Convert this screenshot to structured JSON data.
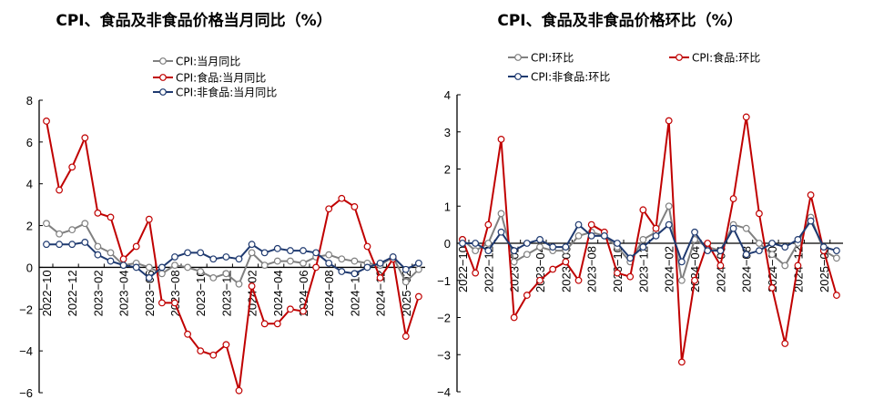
{
  "chart_data": [
    {
      "type": "line",
      "title": "CPI、食品及非食品价格当月同比（%）",
      "xlabel": "",
      "ylabel": "",
      "ylim": [
        -6,
        8
      ],
      "yticks": [
        -6,
        -4,
        -2,
        0,
        2,
        4,
        6,
        8
      ],
      "legend_position": "top-center",
      "x": [
        "2022-10",
        "2022-11",
        "2022-12",
        "2023-01",
        "2023-02",
        "2023-03",
        "2023-04",
        "2023-05",
        "2023-06",
        "2023-07",
        "2023-08",
        "2023-09",
        "2023-10",
        "2023-11",
        "2023-12",
        "2024-01",
        "2024-02",
        "2024-03",
        "2024-04",
        "2024-05",
        "2024-06",
        "2024-07",
        "2024-08",
        "2024-09",
        "2024-10",
        "2024-11",
        "2024-12",
        "2025-01",
        "2025-02",
        "2025-03"
      ],
      "xtick_labels": [
        "2022-10",
        "2022-12",
        "2023-02",
        "2023-04",
        "2023-06",
        "2023-08",
        "2023-10",
        "2023-12",
        "2024-02",
        "2024-04",
        "2024-06",
        "2024-08",
        "2024-10",
        "2024-12",
        "2025-02"
      ],
      "series": [
        {
          "name": "CPI:当月同比",
          "color": "#808080",
          "values": [
            2.1,
            1.6,
            1.8,
            2.1,
            1.0,
            0.7,
            0.1,
            0.2,
            0.0,
            -0.3,
            0.1,
            0.0,
            -0.2,
            -0.5,
            -0.3,
            -0.8,
            0.7,
            0.1,
            0.3,
            0.3,
            0.2,
            0.5,
            0.6,
            0.4,
            0.3,
            0.2,
            0.1,
            0.5,
            -0.7,
            -0.1
          ]
        },
        {
          "name": "CPI:食品:当月同比",
          "color": "#c00000",
          "values": [
            7.0,
            3.7,
            4.8,
            6.2,
            2.6,
            2.4,
            0.4,
            1.0,
            2.3,
            -1.7,
            -1.7,
            -3.2,
            -4.0,
            -4.2,
            -3.7,
            -5.9,
            -0.9,
            -2.7,
            -2.7,
            -2.0,
            -2.1,
            0.0,
            2.8,
            3.3,
            2.9,
            1.0,
            -0.5,
            0.4,
            -3.3,
            -1.4
          ]
        },
        {
          "name": "CPI:非食品:当月同比",
          "color": "#1f3a70",
          "values": [
            1.1,
            1.1,
            1.1,
            1.2,
            0.6,
            0.3,
            0.1,
            0.0,
            -0.5,
            0.0,
            0.5,
            0.7,
            0.7,
            0.4,
            0.5,
            0.4,
            1.1,
            0.7,
            0.9,
            0.8,
            0.8,
            0.7,
            0.2,
            -0.2,
            -0.3,
            0.0,
            0.2,
            0.5,
            -0.1,
            0.2
          ]
        }
      ]
    },
    {
      "type": "line",
      "title": "CPI、食品及非食品价格环比（%）",
      "xlabel": "",
      "ylabel": "",
      "ylim": [
        -4,
        4
      ],
      "yticks": [
        -4,
        -3,
        -2,
        -1,
        0,
        1,
        2,
        3,
        4
      ],
      "legend_position": "top",
      "x": [
        "2022-10",
        "2022-11",
        "2022-12",
        "2023-01",
        "2023-02",
        "2023-03",
        "2023-04",
        "2023-05",
        "2023-06",
        "2023-07",
        "2023-08",
        "2023-09",
        "2023-10",
        "2023-11",
        "2023-12",
        "2024-01",
        "2024-02",
        "2024-03",
        "2024-04",
        "2024-05",
        "2024-06",
        "2024-07",
        "2024-08",
        "2024-09",
        "2024-10",
        "2024-11",
        "2024-12",
        "2025-01",
        "2025-02",
        "2025-03"
      ],
      "xtick_labels": [
        "2022-10",
        "2022-12",
        "2023-02",
        "2023-04",
        "2023-06",
        "2023-08",
        "2023-10",
        "2023-12",
        "2024-02",
        "2024-04",
        "2024-06",
        "2024-08",
        "2024-10",
        "2024-12",
        "2025-02"
      ],
      "series": [
        {
          "name": "CPI:环比",
          "color": "#808080",
          "values": [
            0.1,
            -0.2,
            0.0,
            0.8,
            -0.5,
            -0.3,
            -0.1,
            -0.2,
            -0.2,
            0.2,
            0.3,
            0.2,
            -0.1,
            -0.5,
            0.1,
            0.3,
            1.0,
            -1.0,
            0.1,
            -0.1,
            -0.2,
            0.5,
            0.4,
            0.0,
            -0.3,
            -0.6,
            0.0,
            0.7,
            -0.2,
            -0.4
          ]
        },
        {
          "name": "CPI:食品:环比",
          "color": "#c00000",
          "values": [
            0.1,
            -0.8,
            0.5,
            2.8,
            -2.0,
            -1.4,
            -1.0,
            -0.7,
            -0.5,
            -1.0,
            0.5,
            0.3,
            -0.8,
            -0.9,
            0.9,
            0.4,
            3.3,
            -3.2,
            -1.0,
            0.0,
            -0.6,
            1.2,
            3.4,
            0.8,
            -1.2,
            -2.7,
            -0.6,
            1.3,
            -0.2,
            -1.4
          ]
        },
        {
          "name": "CPI:非食品:环比",
          "color": "#1f3a70",
          "values": [
            0.0,
            0.0,
            -0.2,
            0.3,
            -0.2,
            0.0,
            0.1,
            -0.1,
            -0.1,
            0.5,
            0.2,
            0.2,
            0.0,
            -0.4,
            -0.1,
            0.2,
            0.5,
            -0.5,
            0.3,
            -0.2,
            -0.2,
            0.4,
            -0.3,
            -0.2,
            0.0,
            -0.1,
            0.1,
            0.6,
            -0.1,
            -0.2
          ]
        }
      ]
    }
  ]
}
